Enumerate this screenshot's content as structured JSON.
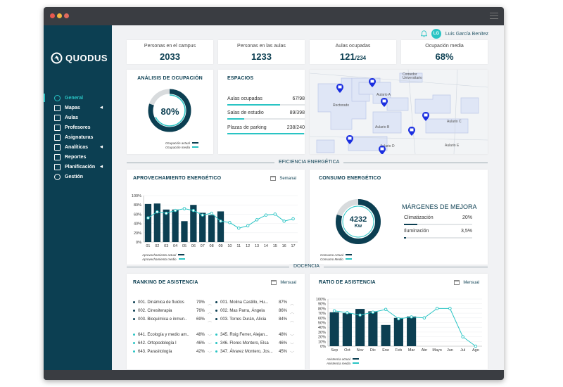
{
  "app": {
    "logo_text": "QUODUS"
  },
  "user": {
    "initials": "LG",
    "name": "Luis García Benitez"
  },
  "sidebar": {
    "items": [
      {
        "label": "General",
        "icon": "gauge-icon",
        "active": true,
        "caret": false
      },
      {
        "label": "Mapas",
        "icon": "map-icon",
        "active": false,
        "caret": true
      },
      {
        "label": "Aulas",
        "icon": "classroom-icon",
        "active": false,
        "caret": false
      },
      {
        "label": "Profesores",
        "icon": "teacher-icon",
        "active": false,
        "caret": false
      },
      {
        "label": "Asignaturas",
        "icon": "subject-icon",
        "active": false,
        "caret": false
      },
      {
        "label": "Analíticas",
        "icon": "analytics-icon",
        "active": false,
        "caret": true
      },
      {
        "label": "Reportes",
        "icon": "report-icon",
        "active": false,
        "caret": false
      },
      {
        "label": "Planificación",
        "icon": "calendar-icon",
        "active": false,
        "caret": true
      },
      {
        "label": "Gestión",
        "icon": "gear-icon",
        "active": false,
        "caret": false
      }
    ]
  },
  "kpis": [
    {
      "label": "Personas en el campus",
      "value": "2033",
      "suffix": ""
    },
    {
      "label": "Personas en las aulas",
      "value": "1233",
      "suffix": ""
    },
    {
      "label": "Aulas ocupadas",
      "value": "121",
      "suffix": "/234"
    },
    {
      "label": "Ocupación media",
      "value": "68%",
      "suffix": ""
    }
  ],
  "occupancy": {
    "title": "ANÁLISIS DE OCUPACIÓN",
    "value": "80%",
    "actual_fraction": 0.8,
    "medium_fraction": 0.68,
    "legend": [
      "Ocupación actual",
      "Ocupación media"
    ]
  },
  "spaces": {
    "title": "ESPACIOS",
    "rows": [
      {
        "label": "Aulas ocupadas",
        "value": "67/98",
        "fraction": 0.68
      },
      {
        "label": "Salas de estudio",
        "value": "89/398",
        "fraction": 0.22
      },
      {
        "label": "Plazas de parking",
        "value": "238/240",
        "fraction": 0.99
      }
    ]
  },
  "map": {
    "labels": [
      "Comedor Universitario",
      "Aulario A",
      "Rectorado",
      "Aulario B",
      "Aulario C",
      "Aulario D",
      "Aulario E"
    ]
  },
  "sections": {
    "energy": "EFICIENCIA ENERGÉTICA",
    "teaching": "DOCENCIA"
  },
  "energy_use": {
    "title": "APROVECHAMIENTO ENERGÉTICO",
    "period": "Semanal",
    "legend": [
      "Aprovechamiento actual",
      "Aprovechamiento medio"
    ]
  },
  "consumption": {
    "title": "CONSUMO ENERGÉTICO",
    "value": "4232",
    "unit": "Kw",
    "actual_fraction": 0.8,
    "legend": [
      "Consumo Actual",
      "Consumo Medio"
    ],
    "margins_title": "MÁRGENES DE MEJORA",
    "margins": [
      {
        "label": "Climatización",
        "value": "20%",
        "fraction": 0.2
      },
      {
        "label": "Iluminación",
        "value": "3,5%",
        "fraction": 0.035
      }
    ]
  },
  "ranking": {
    "title": "RANKING  DE ASISTENCIA",
    "period": "Mensual",
    "top": [
      {
        "label": "001. Dinámica de fluidos",
        "pct": "79%"
      },
      {
        "label": "002. Cinesiterapia",
        "pct": "76%"
      },
      {
        "label": "003. Bioquímica e inmun..",
        "pct": "69%"
      },
      {
        "label": "001. Molina Castillo, Hu...",
        "pct": "87%"
      },
      {
        "label": "002. Mas Parra, Ángela",
        "pct": "86%"
      },
      {
        "label": "003. Torres Durán, Alicia",
        "pct": "84%"
      }
    ],
    "bottom": [
      {
        "label": "641. Ecología y medio am..",
        "pct": "48%"
      },
      {
        "label": "642. Ortopodología I",
        "pct": "46%"
      },
      {
        "label": "643. Parasitología",
        "pct": "42%"
      },
      {
        "label": "345. Roig Ferrer, Alejan...",
        "pct": "48%"
      },
      {
        "label": "346. Flores Montero, Elsa",
        "pct": "46%"
      },
      {
        "label": "347. Álvarez Montero, Jos...",
        "pct": "45%"
      }
    ]
  },
  "attendance": {
    "title": "RATIO DE ASISTENCIA",
    "period": "Mensual",
    "legend": [
      "Asistencia actual",
      "Asistencia media"
    ]
  },
  "chart_data": [
    {
      "type": "bar",
      "title": "APROVECHAMIENTO ENERGÉTICO",
      "categories": [
        "01",
        "02",
        "03",
        "04",
        "05",
        "06",
        "07",
        "08",
        "09",
        "10",
        "11",
        "12",
        "13",
        "14",
        "15",
        "16",
        "17"
      ],
      "ylim": [
        0,
        100
      ],
      "yticks": [
        "0%",
        "20%",
        "40%",
        "60%",
        "80%",
        "100%"
      ],
      "series": [
        {
          "name": "Aprovechamiento actual",
          "type": "bar",
          "values": [
            82,
            83,
            70,
            70,
            45,
            80,
            63,
            58,
            66,
            null,
            null,
            null,
            null,
            null,
            null,
            null,
            null
          ]
        },
        {
          "name": "Aprovechamiento medio",
          "type": "line",
          "values": [
            52,
            65,
            62,
            68,
            72,
            68,
            58,
            62,
            45,
            42,
            30,
            35,
            48,
            58,
            60,
            45,
            50
          ]
        }
      ],
      "legend_position": "bottom-left"
    },
    {
      "type": "bar",
      "title": "RATIO DE ASISTENCIA",
      "categories": [
        "Sep",
        "Oct",
        "Nov",
        "Dic",
        "Ene",
        "Feb",
        "Mar",
        "Abr",
        "Mayo",
        "Jun",
        "Jul",
        "Ago"
      ],
      "ylim": [
        0,
        100
      ],
      "yticks": [
        "0%",
        "10%",
        "20%",
        "30%",
        "40%",
        "50%",
        "60%",
        "70%",
        "80%",
        "90%",
        "100%"
      ],
      "series": [
        {
          "name": "Asistencia actual",
          "type": "bar",
          "values": [
            72,
            70,
            79,
            74,
            45,
            60,
            63,
            null,
            null,
            null,
            null,
            null
          ]
        },
        {
          "name": "Asistencia media",
          "type": "line",
          "values": [
            75,
            71,
            66,
            72,
            78,
            58,
            62,
            60,
            80,
            80,
            20,
            0
          ]
        }
      ],
      "legend_position": "bottom-left"
    }
  ],
  "colors": {
    "navy": "#0c3f52",
    "teal": "#29c4c4",
    "gray": "#d8dbdd"
  }
}
